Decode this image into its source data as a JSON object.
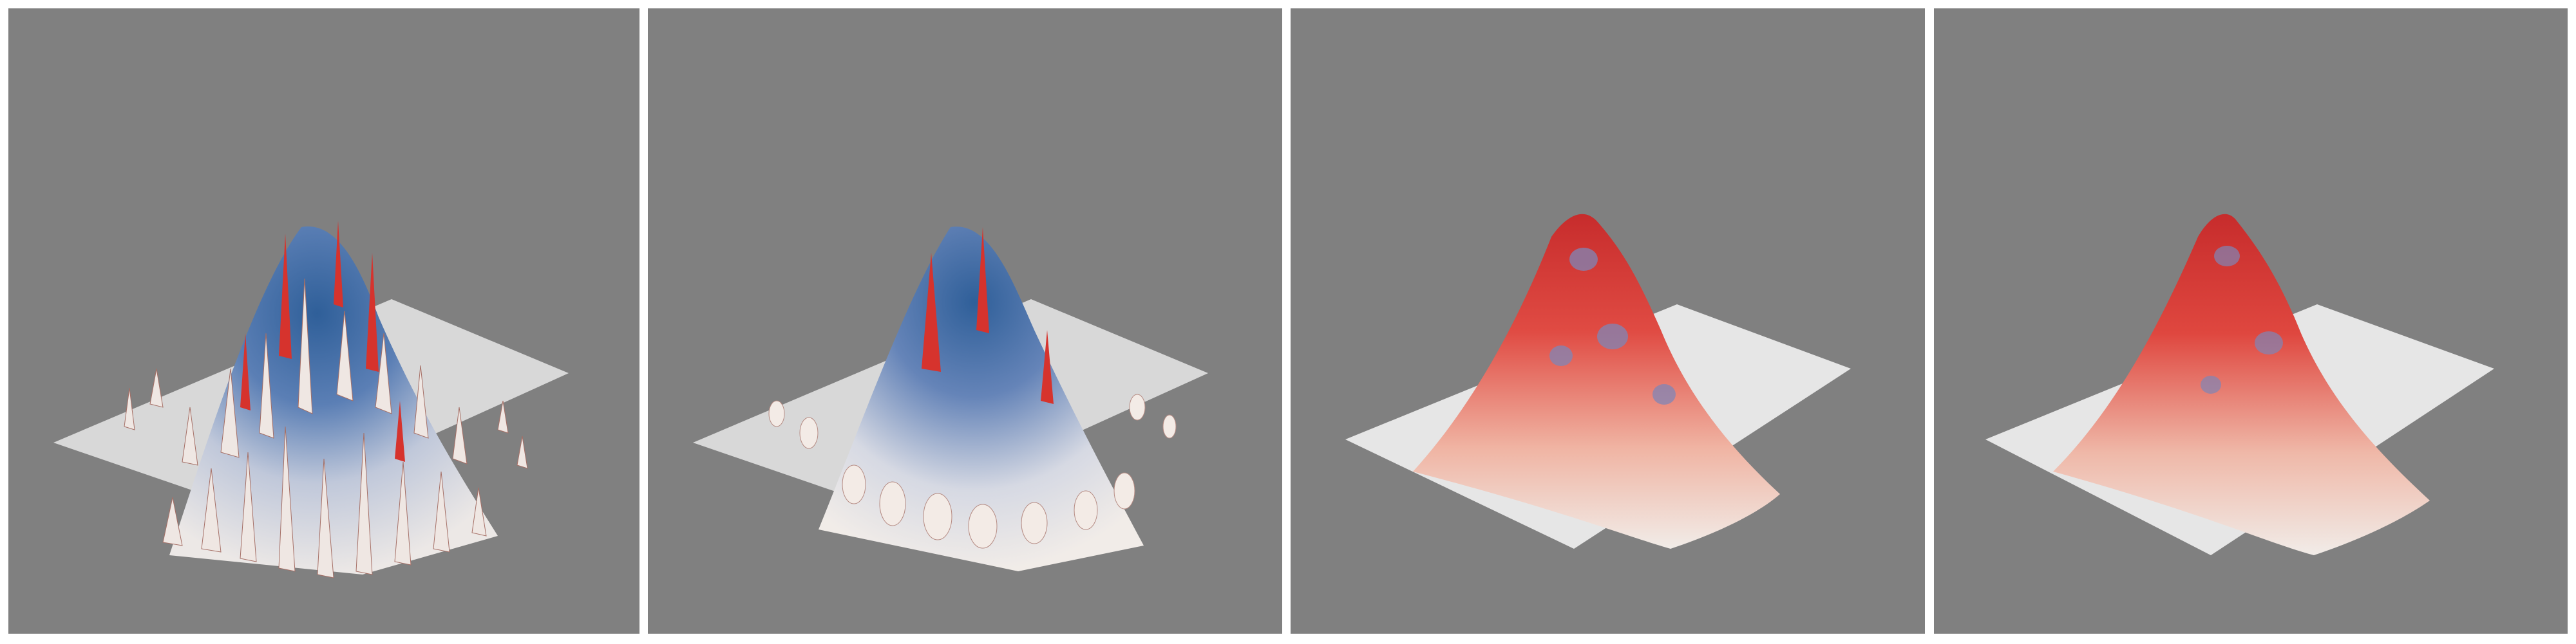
{
  "figure": {
    "panels": [
      {
        "id": 1,
        "surface": "noisy-spiky"
      },
      {
        "id": 2,
        "surface": "partially-smoothed"
      },
      {
        "id": 3,
        "surface": "smoothed"
      },
      {
        "id": 4,
        "surface": "smoothest"
      }
    ],
    "colors": {
      "background": "#808080",
      "separator": "#ffffff",
      "base_plane": "#d9d9d9",
      "peak_blue": "#3f6fa8",
      "red_highlight": "#d8302a",
      "light_surface": "#f1ece8"
    }
  }
}
